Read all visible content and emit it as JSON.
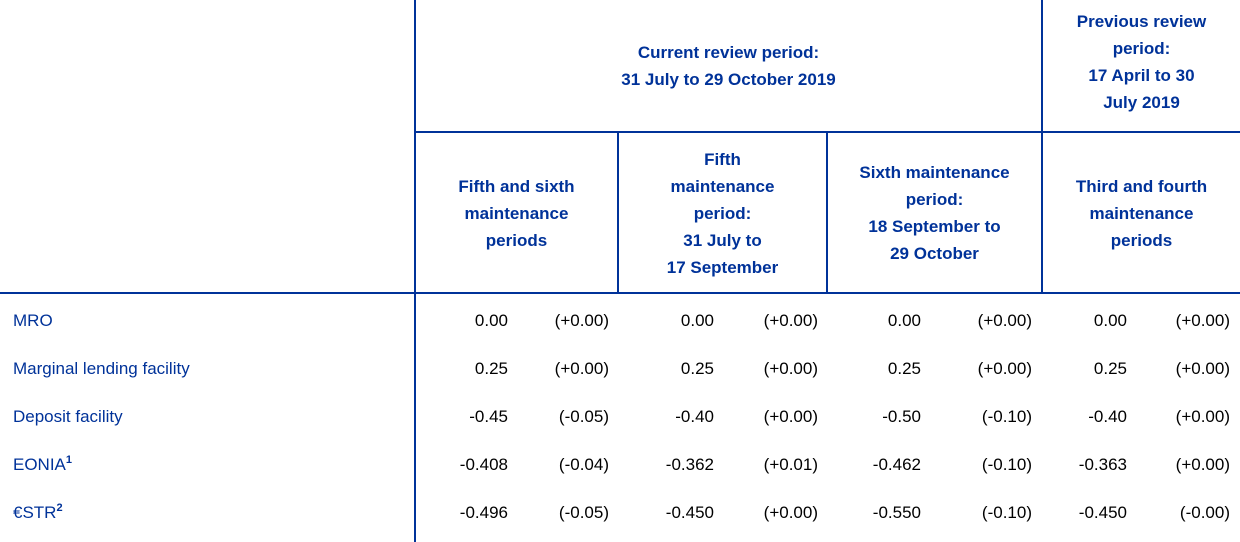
{
  "header": {
    "current_period": "Current review period:\n31 July to 29 October 2019",
    "previous_period": "Previous review\nperiod:\n17 April to 30\nJuly 2019",
    "columns": [
      "Fifth and sixth\nmaintenance\nperiods",
      "Fifth\nmaintenance\nperiod:\n31 July to\n17 September",
      "Sixth maintenance\nperiod:\n18 September to\n29 October",
      "Third and fourth\nmaintenance\nperiods"
    ]
  },
  "rows": [
    {
      "label": "MRO",
      "values": [
        "0.00",
        "(+0.00)",
        "0.00",
        "(+0.00)",
        "0.00",
        "(+0.00)",
        "0.00",
        "(+0.00)"
      ]
    },
    {
      "label": "Marginal lending facility",
      "values": [
        "0.25",
        "(+0.00)",
        "0.25",
        "(+0.00)",
        "0.25",
        "(+0.00)",
        "0.25",
        "(+0.00)"
      ]
    },
    {
      "label": "Deposit facility",
      "values": [
        "-0.45",
        "(-0.05)",
        "-0.40",
        "(+0.00)",
        "-0.50",
        "(-0.10)",
        "-0.40",
        "(+0.00)"
      ]
    },
    {
      "label": "EONIA",
      "note": "1",
      "values": [
        "-0.408",
        "(-0.04)",
        "-0.362",
        "(+0.01)",
        "-0.462",
        "(-0.10)",
        "-0.363",
        "(+0.00)"
      ]
    },
    {
      "label": "€STR",
      "note": "2",
      "values": [
        "-0.496",
        "(-0.05)",
        "-0.450",
        "(+0.00)",
        "-0.550",
        "(-0.10)",
        "-0.450",
        "(-0.00)"
      ]
    }
  ]
}
